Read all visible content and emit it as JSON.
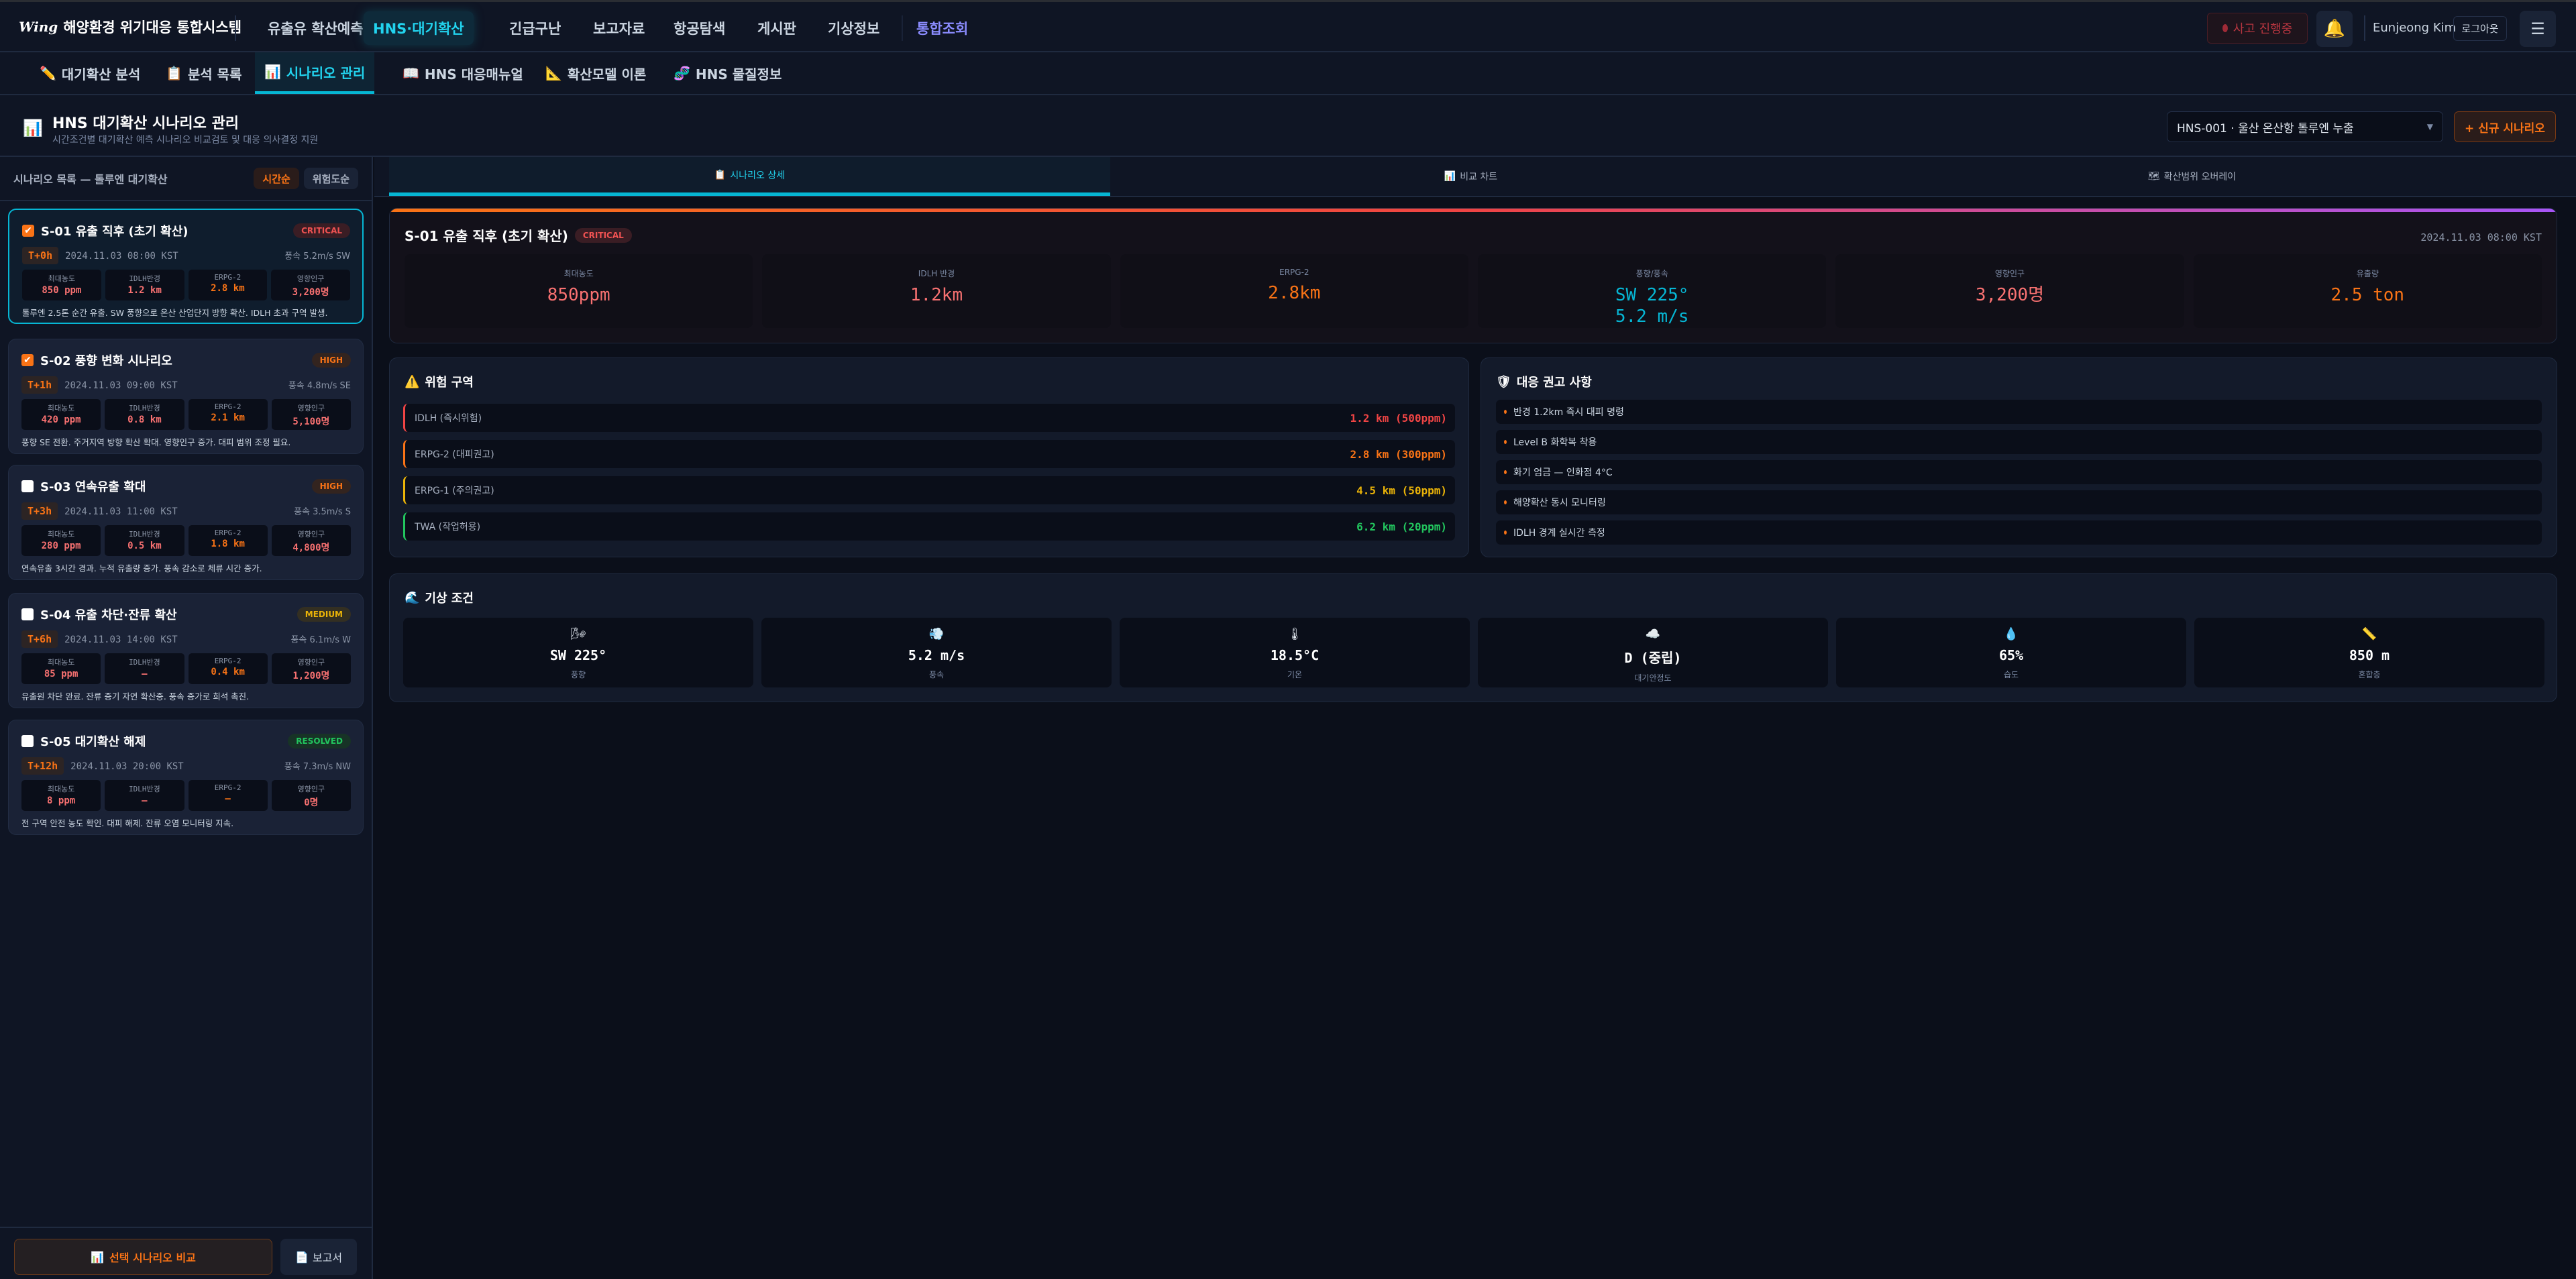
{
  "app": {
    "logo_mark": "Wing",
    "title": "해양환경 위기대응 통합시스템"
  },
  "topnav": {
    "items": [
      "유출유 확산예측",
      "HNS·대기확산",
      "긴급구난",
      "보고자료",
      "항공탐색",
      "게시판",
      "기상정보",
      "통합조회"
    ],
    "active": 1,
    "incident_label": "사고 진행중",
    "user": "Eunjeong Kim",
    "logout": "로그아웃"
  },
  "subnav": {
    "items": [
      {
        "icon": "pencil-icon",
        "glyph": "✏️",
        "label": "대기확산 분석"
      },
      {
        "icon": "clipboard-icon",
        "glyph": "📋",
        "label": "분석 목록"
      },
      {
        "icon": "chart-icon",
        "glyph": "📊",
        "label": "시나리오 관리"
      },
      {
        "icon": "book-icon",
        "glyph": "📖",
        "label": "HNS 대응매뉴얼"
      },
      {
        "icon": "triangle-ruler-icon",
        "glyph": "📐",
        "label": "확산모델 이론"
      },
      {
        "icon": "dna-icon",
        "glyph": "🧬",
        "label": "HNS 물질정보"
      }
    ],
    "active": 2
  },
  "page": {
    "title": "HNS 대기확산 시나리오 관리",
    "subtitle": "시간조건별 대기확산 예측 시나리오 비교검토 및 대응 의사결정 지원",
    "incident_select": "HNS-001 · 울산 온산항 톨루엔 누출",
    "new_button": "+ 신규 시나리오"
  },
  "list": {
    "title": "시나리오 목록 — 톨루엔 대기확산",
    "sort_time": "시간순",
    "sort_risk": "위험도순",
    "metric_labels": [
      "최대농도",
      "IDLH반경",
      "ERPG-2",
      "영향인구"
    ],
    "scenarios": [
      {
        "title": "S-01 유출 직후 (초기 확산)",
        "checked": true,
        "selected": true,
        "severity": "CRITICAL",
        "t": "T+0h",
        "time": "2024.11.03 08:00 KST",
        "wind": "풍속 5.2m/s SW",
        "metrics": [
          "850 ppm",
          "1.2 km",
          "2.8 km",
          "3,200명"
        ],
        "desc": "톨루엔 2.5톤 순간 유출. SW 풍향으로 온산 산업단지 방향 확산. IDLH 초과 구역 발생."
      },
      {
        "title": "S-02 풍향 변화 시나리오",
        "checked": true,
        "selected": false,
        "severity": "HIGH",
        "t": "T+1h",
        "time": "2024.11.03 09:00 KST",
        "wind": "풍속 4.8m/s SE",
        "metrics": [
          "420 ppm",
          "0.8 km",
          "2.1 km",
          "5,100명"
        ],
        "desc": "풍향 SE 전환. 주거지역 방향 확산 확대. 영향인구 증가. 대피 범위 조정 필요."
      },
      {
        "title": "S-03 연속유출 확대",
        "checked": false,
        "selected": false,
        "severity": "HIGH",
        "t": "T+3h",
        "time": "2024.11.03 11:00 KST",
        "wind": "풍속 3.5m/s S",
        "metrics": [
          "280 ppm",
          "0.5 km",
          "1.8 km",
          "4,800명"
        ],
        "desc": "연속유출 3시간 경과. 누적 유출량 증가. 풍속 감소로 체류 시간 증가."
      },
      {
        "title": "S-04 유출 차단·잔류 확산",
        "checked": false,
        "selected": false,
        "severity": "MEDIUM",
        "t": "T+6h",
        "time": "2024.11.03 14:00 KST",
        "wind": "풍속 6.1m/s W",
        "metrics": [
          "85 ppm",
          "—",
          "0.4 km",
          "1,200명"
        ],
        "desc": "유출원 차단 완료. 잔류 증기 자연 확산중. 풍속 증가로 희석 촉진."
      },
      {
        "title": "S-05 대기확산 해제",
        "checked": false,
        "selected": false,
        "severity": "RESOLVED",
        "t": "T+12h",
        "time": "2024.11.03 20:00 KST",
        "wind": "풍속 7.3m/s NW",
        "metrics": [
          "8 ppm",
          "—",
          "—",
          "0명"
        ],
        "desc": "전 구역 안전 농도 확인. 대피 해제. 잔류 오염 모니터링 지속."
      }
    ],
    "compare_button": "선택 시나리오 비교",
    "report_button": "보고서"
  },
  "severity_colors": {
    "CRITICAL": {
      "fg": "#f05252",
      "bg": "#3a1d24"
    },
    "HIGH": {
      "fg": "#f97316",
      "bg": "#33241f"
    },
    "MEDIUM": {
      "fg": "#eab308",
      "bg": "#332f22"
    },
    "RESOLVED": {
      "fg": "#22c55e",
      "bg": "#173326"
    }
  },
  "tabs": [
    {
      "glyph": "📋",
      "label": "시나리오 상세"
    },
    {
      "glyph": "📊",
      "label": "비교 차트"
    },
    {
      "glyph": "🗺",
      "label": "확산범위 오버레이"
    }
  ],
  "detail": {
    "title": "S-01 유출 직후 (초기 확산)",
    "severity": "CRITICAL",
    "time": "2024.11.03 08:00 KST",
    "metrics": [
      {
        "label": "최대농도",
        "value": "850ppm",
        "color": "#f87171"
      },
      {
        "label": "IDLH 반경",
        "value": "1.2km",
        "color": "#f87171"
      },
      {
        "label": "ERPG-2",
        "value": "2.8km",
        "color": "#f97316"
      },
      {
        "label": "풍향/풍속",
        "value": "SW 225°",
        "value2": "5.2 m/s",
        "color": "#06b6d4"
      },
      {
        "label": "영향인구",
        "value": "3,200명",
        "color": "#f87171"
      },
      {
        "label": "유출량",
        "value": "2.5 ton",
        "color": "#f97316"
      }
    ]
  },
  "zones": {
    "title": "위험 구역",
    "items": [
      {
        "name": "IDLH (즉시위험)",
        "value": "1.2 km (500ppm)",
        "color": "#ef4444"
      },
      {
        "name": "ERPG-2 (대피권고)",
        "value": "2.8 km (300ppm)",
        "color": "#f97316"
      },
      {
        "name": "ERPG-1 (주의권고)",
        "value": "4.5 km (50ppm)",
        "color": "#eab308"
      },
      {
        "name": "TWA (작업허용)",
        "value": "6.2 km (20ppm)",
        "color": "#22c55e"
      }
    ]
  },
  "recommendations": {
    "title": "대응 권고 사항",
    "items": [
      "반경 1.2km 즉시 대피 명령",
      "Level B 화학복 착용",
      "화기 엄금 — 인화점 4°C",
      "해양확산 동시 모니터링",
      "IDLH 경계 실시간 측정"
    ]
  },
  "weather": {
    "title": "기상 조건",
    "items": [
      {
        "icon": "wind-direction-icon",
        "glyph": "🌬",
        "value": "SW 225°",
        "label": "풍향"
      },
      {
        "icon": "wind-icon",
        "glyph": "💨",
        "value": "5.2 m/s",
        "label": "풍속"
      },
      {
        "icon": "thermometer-icon",
        "glyph": "🌡",
        "value": "18.5°C",
        "label": "기온"
      },
      {
        "icon": "cloud-icon",
        "glyph": "☁️",
        "value": "D (중립)",
        "label": "대기안정도"
      },
      {
        "icon": "droplet-icon",
        "glyph": "💧",
        "value": "65%",
        "label": "습도"
      },
      {
        "icon": "ruler-icon",
        "glyph": "📏",
        "value": "850 m",
        "label": "혼합층"
      }
    ]
  }
}
